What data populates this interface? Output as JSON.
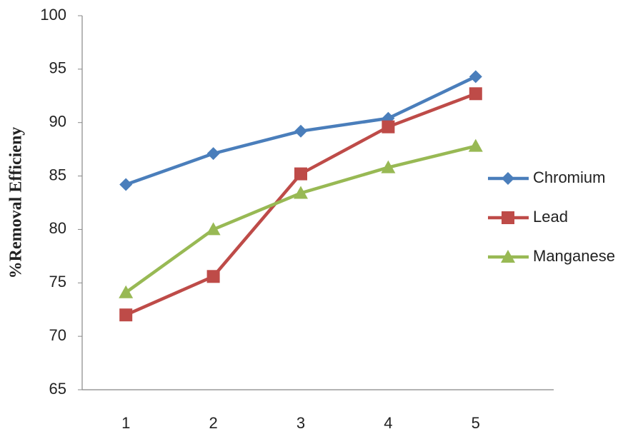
{
  "chart_data": {
    "type": "line",
    "y_label": "%Removal Efficieny",
    "categories": [
      "1",
      "2",
      "3",
      "4",
      "5"
    ],
    "series": [
      {
        "name": "Chromium",
        "color": "#4a7ebb",
        "marker": "diamond",
        "values": [
          84.2,
          87.1,
          89.2,
          90.4,
          94.3
        ]
      },
      {
        "name": "Lead",
        "color": "#be4b48",
        "marker": "square",
        "values": [
          72.0,
          75.6,
          85.2,
          89.6,
          92.7
        ]
      },
      {
        "name": "Manganese",
        "color": "#98b954",
        "marker": "triangle",
        "values": [
          74.1,
          80.0,
          83.4,
          85.8,
          87.8
        ]
      }
    ],
    "ylim": [
      65,
      100
    ],
    "yticks": [
      65,
      70,
      75,
      80,
      85,
      90,
      95,
      100
    ],
    "grid": false,
    "legend": "right"
  }
}
